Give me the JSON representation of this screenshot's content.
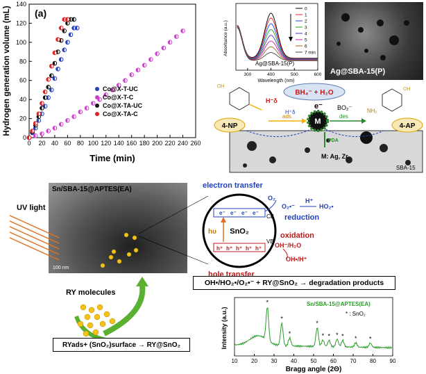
{
  "panel_a": {
    "label": "(a)",
    "ylabel": "Hydrogen generation volume (mL)",
    "xlabel": "Time (min)",
    "xticks": [
      "0",
      "20",
      "40",
      "60",
      "80",
      "100",
      "120",
      "140",
      "160",
      "180",
      "200",
      "220",
      "240",
      "260"
    ],
    "yticks": [
      "0",
      "20",
      "40",
      "60",
      "80",
      "100",
      "120",
      "140"
    ],
    "legend": [
      "Co@X-T-UC",
      "Co@X-T-C",
      "Co@X-TA-UC",
      "Co@X-TA-C"
    ],
    "colors": {
      "t_uc": "#1f3fbf",
      "t_c": "#d040d0",
      "ta_uc": "#111111",
      "ta_c": "#e02020"
    }
  },
  "chart_data": {
    "type": "scatter",
    "xlabel": "Time (min)",
    "ylabel": "Hydrogen generation volume (mL)",
    "xlim": [
      0,
      260
    ],
    "ylim": [
      0,
      140
    ],
    "series": [
      {
        "name": "Co@X-T-UC",
        "x": [
          0,
          5,
          10,
          15,
          20,
          25,
          30,
          35,
          40,
          45,
          50,
          55,
          60,
          65,
          70,
          75
        ],
        "y": [
          0,
          5,
          10,
          18,
          25,
          33,
          42,
          50,
          62,
          72,
          82,
          92,
          100,
          108,
          115,
          115
        ]
      },
      {
        "name": "Co@X-T-C",
        "x": [
          0,
          10,
          20,
          30,
          40,
          50,
          60,
          70,
          80,
          90,
          100,
          110,
          120,
          130,
          140,
          150,
          160,
          170,
          180,
          190,
          200,
          210,
          220,
          230,
          240
        ],
        "y": [
          0,
          2,
          4,
          7,
          10,
          14,
          18,
          22,
          27,
          31,
          36,
          40,
          45,
          50,
          55,
          60,
          66,
          71,
          76,
          82,
          88,
          94,
          100,
          106,
          112
        ]
      },
      {
        "name": "Co@X-TA-UC",
        "x": [
          0,
          5,
          10,
          15,
          20,
          25,
          30,
          35,
          40,
          45,
          50,
          55,
          60,
          65,
          70
        ],
        "y": [
          0,
          6,
          13,
          22,
          31,
          42,
          53,
          65,
          78,
          90,
          102,
          112,
          120,
          124,
          124
        ]
      },
      {
        "name": "Co@X-TA-C",
        "x": [
          0,
          5,
          10,
          15,
          20,
          25,
          30,
          35,
          40,
          45,
          50,
          55,
          60
        ],
        "y": [
          0,
          7,
          15,
          25,
          36,
          48,
          61,
          75,
          89,
          103,
          115,
          124,
          124
        ]
      }
    ]
  },
  "uv_inset": {
    "ylabel": "Absorbance (a.u.)",
    "xlabel": "Wavelength (nm)",
    "xticks": [
      "300",
      "400",
      "500",
      "600"
    ],
    "caption": "Ag@SBA-15(P)",
    "legend": [
      "0",
      "1",
      "2",
      "3",
      "4",
      "5",
      "6",
      "7 min"
    ],
    "colors": [
      "#000000",
      "#e02020",
      "#2040e0",
      "#20a020",
      "#6020c0",
      "#c020a0",
      "#a06020",
      "#404040"
    ],
    "peaks": [
      1.0,
      0.9,
      0.78,
      0.66,
      0.54,
      0.42,
      0.3,
      0.18
    ]
  },
  "tem_top": {
    "caption": "Ag@SBA-15(P)"
  },
  "mechanism_top": {
    "reactant": "4-NP",
    "product": "4-AP",
    "borohydride": "BH₄⁻ + H₂O",
    "hydride": "H⁻δ",
    "proton": "H⁺δ",
    "borate": "BO₂⁻",
    "electron": "e⁻",
    "metal": "M",
    "metals": "M: Ag, Zr",
    "linker": "PDA",
    "support": "SBA-15",
    "ads": "ads",
    "des": "des",
    "amine": "NH₂",
    "hydroxyl": "OH"
  },
  "mechanism_bottom": {
    "tem_caption": "Sn/SBA-15@APTES(EA)",
    "scale": "100 nm",
    "uv_light": "UV light",
    "electron_transfer": "electron transfer",
    "hole_transfer": "hole transfer",
    "o2": "O₂",
    "superoxide": "O₂•⁻",
    "h_plus": "H⁺",
    "ho2": "HO₂•",
    "reduction": "reduction",
    "oxidation": "oxidation",
    "oh_h2o": "OH⁻/H₂O",
    "oh_h": "OH•/H⁺",
    "cb": "CB",
    "vb": "VB",
    "hv": "hυ",
    "sno2": "SnO₂",
    "e_minus": "e⁻",
    "h_plus_hole": "h⁺",
    "degradation": "OH•/HO₂•/O₂•⁻ + RY@SnO₂ → degradation products",
    "ry_molecules": "RY molecules",
    "adsorption": "RYads+ (SnO₂)surface → RY@SnO₂"
  },
  "xrd": {
    "title": "Sn/SBA-15@APTES(EA)",
    "marker_legend": "* : SnO₂",
    "ylabel": "Intensity (a.u.)",
    "xlabel": "Bragg angle (2Θ)",
    "xticks": [
      "10",
      "20",
      "30",
      "40",
      "50",
      "60",
      "70",
      "80",
      "90"
    ],
    "color": "#2a9a2a"
  }
}
